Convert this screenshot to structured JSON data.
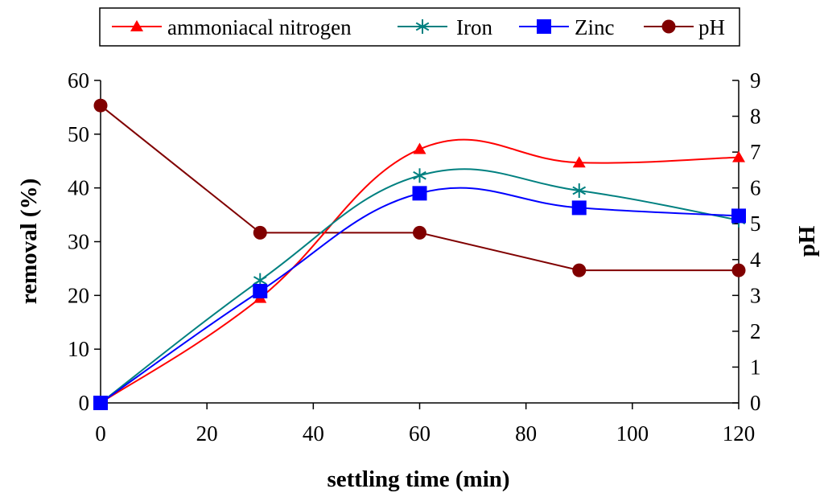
{
  "chart_data": {
    "type": "line",
    "title": "",
    "xlabel": "settling time (min)",
    "ylabel": "removal (%)",
    "y2label": "pH",
    "xlim": [
      0,
      120
    ],
    "ylim": [
      0,
      60
    ],
    "y2lim": [
      0,
      9
    ],
    "x_ticks": [
      0,
      20,
      40,
      60,
      80,
      100,
      120
    ],
    "y_ticks": [
      0,
      10,
      20,
      30,
      40,
      50,
      60
    ],
    "y2_ticks": [
      0,
      1,
      2,
      3,
      4,
      5,
      6,
      7,
      8,
      9
    ],
    "grid": false,
    "legend_position": "top",
    "x": [
      0,
      30,
      60,
      90,
      120
    ],
    "series": [
      {
        "name": "ammoniacal nitrogen",
        "axis": "left",
        "values": [
          0,
          19.5,
          47.2,
          44.7,
          45.7
        ],
        "color": "#ff0000",
        "marker": "triangle"
      },
      {
        "name": "Iron",
        "axis": "left",
        "values": [
          0,
          22.8,
          42.3,
          39.5,
          34.0
        ],
        "color": "#008080",
        "marker": "asterisk"
      },
      {
        "name": "Zinc",
        "axis": "left",
        "values": [
          0,
          20.8,
          39.0,
          36.3,
          34.8
        ],
        "color": "#0000ff",
        "marker": "square"
      },
      {
        "name": "pH",
        "axis": "right",
        "values": [
          8.3,
          4.75,
          4.75,
          3.7,
          3.7
        ],
        "color": "#800000",
        "marker": "circle"
      }
    ]
  }
}
